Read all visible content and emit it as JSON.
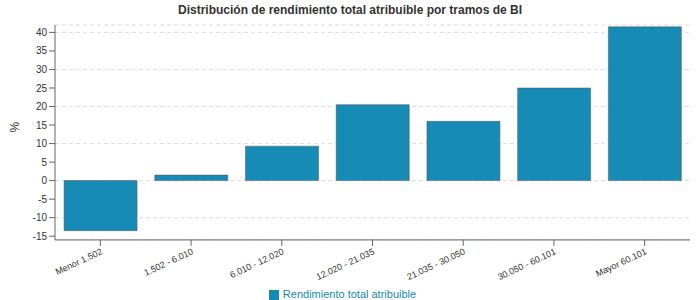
{
  "chart_data": {
    "type": "bar",
    "title": "Distribución de rendimiento total atribuible por tramos de BI",
    "y_label": "%",
    "categories": [
      "Menor 1.502",
      "1.502 - 6.010",
      "6.010 - 12.020",
      "12.020 - 21.035",
      "21.035 - 30.050",
      "30.050 - 60.101",
      "Mayor 60.101"
    ],
    "series": [
      {
        "name": "Rendimiento total atribuible",
        "color": "#168bb5",
        "values": [
          -13.5,
          1.5,
          9.3,
          20.5,
          16,
          25,
          41.5
        ]
      }
    ],
    "ylim": [
      -16,
      42
    ],
    "yticks": [
      -15,
      -10,
      -5,
      0,
      5,
      10,
      15,
      20,
      25,
      30,
      35,
      40
    ],
    "grid": true,
    "legend": "bottom"
  }
}
